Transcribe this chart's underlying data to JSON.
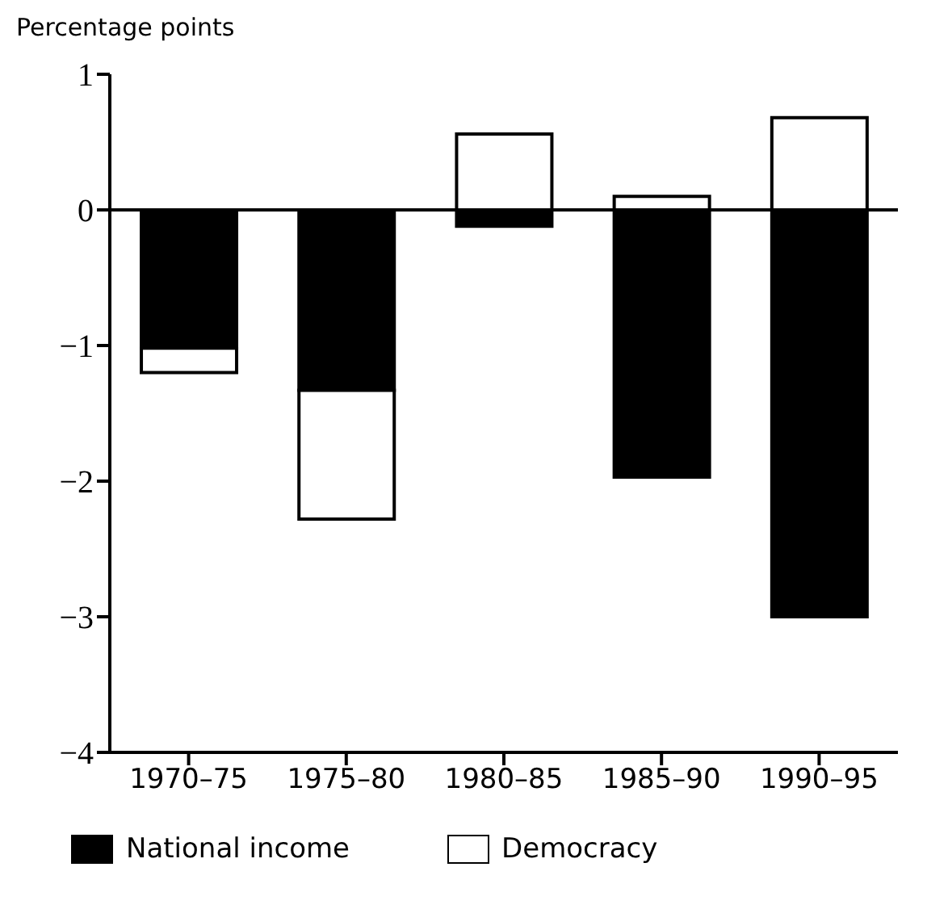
{
  "chart_data": {
    "type": "bar",
    "ylabel": "Percentage points",
    "stacked": true,
    "categories": [
      "1970–75",
      "1975–80",
      "1980–85",
      "1985–90",
      "1990–95"
    ],
    "series": [
      {
        "name": "National income",
        "color": "#000000",
        "values": [
          -1.02,
          -1.33,
          -0.12,
          -1.97,
          -3.0
        ]
      },
      {
        "name": "Democracy",
        "color": "#ffffff",
        "values": [
          -0.18,
          -0.95,
          0.56,
          0.1,
          0.68
        ]
      }
    ],
    "ylim": [
      -4,
      1
    ],
    "yticks": [
      -4,
      -3,
      -2,
      -1,
      0,
      1
    ],
    "legend": "bottom",
    "ref_lines": [
      {
        "axis": "y",
        "value": 0
      }
    ]
  }
}
